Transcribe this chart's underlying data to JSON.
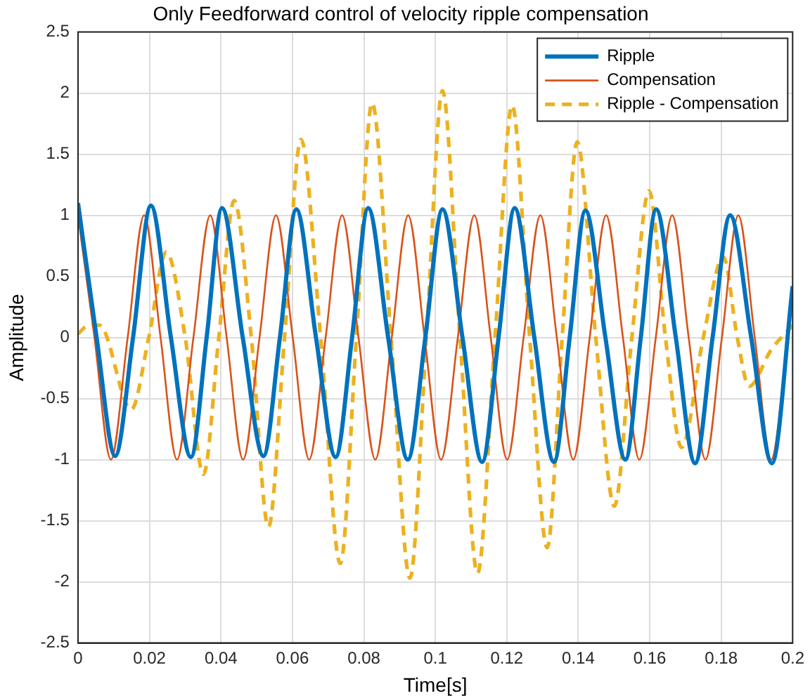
{
  "chart_data": {
    "type": "line",
    "title": "Only Feedforward control of velocity ripple compensation",
    "xlabel": "Time[s]",
    "ylabel": "Amplitude",
    "xlim": [
      0,
      0.2
    ],
    "ylim": [
      -2.5,
      2.5
    ],
    "xticks": [
      0,
      0.02,
      0.04,
      0.06,
      0.08,
      0.1,
      0.12,
      0.14,
      0.16,
      0.18,
      0.2
    ],
    "yticks": [
      -2.5,
      -2,
      -1.5,
      -1,
      -0.5,
      0,
      0.5,
      1,
      1.5,
      2,
      2.5
    ],
    "grid": true,
    "legend": "top right",
    "marker": "none",
    "series": [
      {
        "name": "Ripple",
        "color": "#0072bd",
        "line_style": "solid",
        "x": [
          0,
          0.0052,
          0.0104,
          0.0154,
          0.0204,
          0.026,
          0.0316,
          0.036,
          0.0403,
          0.0461,
          0.0519,
          0.0565,
          0.0611,
          0.0666,
          0.0721,
          0.0767,
          0.0812,
          0.0868,
          0.0923,
          0.0972,
          0.102,
          0.1076,
          0.1131,
          0.1177,
          0.1222,
          0.1277,
          0.1332,
          0.1376,
          0.142,
          0.1476,
          0.1532,
          0.1575,
          0.1618,
          0.1673,
          0.1727,
          0.1776,
          0.1825,
          0.1884,
          0.1942,
          0.2
        ],
        "values": [
          1.1,
          0,
          -0.97,
          0,
          1.08,
          0,
          -0.98,
          0,
          1.06,
          0,
          -0.97,
          0,
          1.05,
          0,
          -0.98,
          0,
          1.06,
          0,
          -1.0,
          0,
          1.05,
          0,
          -1.02,
          0,
          1.06,
          0,
          -1.02,
          0,
          1.04,
          0,
          -1.0,
          0,
          1.05,
          0,
          -1.03,
          0,
          1.0,
          0,
          -1.03,
          0.42
        ]
      },
      {
        "name": "Compensation",
        "color": "#d95319",
        "line_style": "solid",
        "x": [
          0,
          0.0046,
          0.0092,
          0.0139,
          0.0185,
          0.0231,
          0.0277,
          0.0323,
          0.037,
          0.0416,
          0.0462,
          0.0508,
          0.0554,
          0.0601,
          0.0647,
          0.0693,
          0.0739,
          0.0785,
          0.0832,
          0.0878,
          0.0924,
          0.097,
          0.1016,
          0.1063,
          0.1109,
          0.1155,
          0.1201,
          0.1247,
          0.1294,
          0.134,
          0.1386,
          0.1432,
          0.1478,
          0.1525,
          0.1571,
          0.1617,
          0.1663,
          0.1709,
          0.1756,
          0.1802,
          0.1848,
          0.1894,
          0.194,
          0.1987
        ],
        "values": [
          1,
          0,
          -1,
          0,
          1,
          0,
          -1,
          0,
          1,
          0,
          -1,
          0,
          1,
          0,
          -1,
          0,
          1,
          0,
          -1,
          0,
          1,
          0,
          -1,
          0,
          1,
          0,
          -1,
          0,
          1,
          0,
          -1,
          0,
          1,
          0,
          -1,
          0,
          1,
          0,
          -1,
          0,
          1,
          0,
          -1,
          0
        ]
      },
      {
        "name": "Ripple - Compensation",
        "color": "#edb120",
        "line_style": "dashed",
        "x": [
          0,
          0.003,
          0.006,
          0.0149,
          0.0198,
          0.0247,
          0.03,
          0.0351,
          0.0394,
          0.0437,
          0.0485,
          0.0533,
          0.0578,
          0.0624,
          0.0679,
          0.0734,
          0.0779,
          0.0823,
          0.0876,
          0.0929,
          0.0975,
          0.102,
          0.1069,
          0.1118,
          0.1167,
          0.1215,
          0.1264,
          0.1313,
          0.1355,
          0.1397,
          0.1449,
          0.1501,
          0.155,
          0.1598,
          0.1644,
          0.1689,
          0.175,
          0.1806,
          0.1845,
          0.1878,
          0.194,
          0.2
        ],
        "values": [
          0.03,
          0.1,
          0.1,
          -0.59,
          0,
          0.7,
          0,
          -1.12,
          0,
          1.12,
          0,
          -1.55,
          0,
          1.62,
          0,
          -1.85,
          0,
          1.92,
          0,
          -1.97,
          0,
          2.02,
          0,
          -1.93,
          0,
          1.9,
          0,
          -1.72,
          0,
          1.6,
          0,
          -1.38,
          0,
          1.2,
          0,
          -0.9,
          0,
          0.66,
          0,
          -0.4,
          -0.1,
          0.1
        ]
      }
    ]
  }
}
